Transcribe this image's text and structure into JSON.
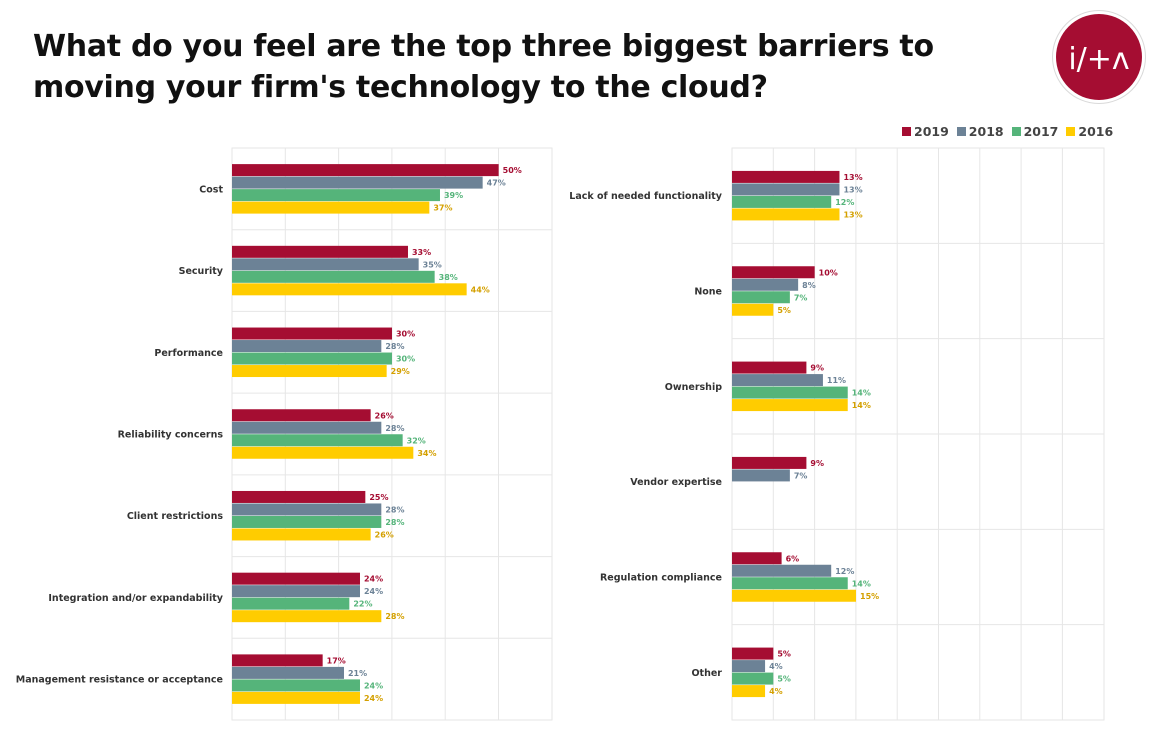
{
  "title": "What do you feel are the top three biggest barriers to moving your firm's technology to the cloud?",
  "logo": {
    "text": "i/+ʌ",
    "icon": "ita-logo",
    "color": "#a50d32"
  },
  "legend": [
    {
      "label": "2019",
      "color": "#a50d32"
    },
    {
      "label": "2018",
      "color": "#6c8296"
    },
    {
      "label": "2017",
      "color": "#55b47a"
    },
    {
      "label": "2016",
      "color": "#ffcc00"
    }
  ],
  "value_label_colors": [
    "#a50d32",
    "#6c8296",
    "#55b47a",
    "#d4a000"
  ],
  "chart_data": [
    {
      "type": "bar",
      "orientation": "horizontal",
      "title": "",
      "categories": [
        "Cost",
        "Security",
        "Performance",
        "Reliability concerns",
        "Client restrictions",
        "Integration and/or expandability",
        "Management resistance or acceptance"
      ],
      "series": [
        {
          "name": "2019",
          "values": [
            50,
            33,
            30,
            26,
            25,
            24,
            17
          ]
        },
        {
          "name": "2018",
          "values": [
            47,
            35,
            28,
            28,
            28,
            24,
            21
          ]
        },
        {
          "name": "2017",
          "values": [
            39,
            38,
            30,
            32,
            28,
            22,
            24
          ]
        },
        {
          "name": "2016",
          "values": [
            37,
            44,
            29,
            34,
            26,
            28,
            24
          ]
        }
      ],
      "value_suffix": "%",
      "xlim": [
        0,
        60
      ],
      "grid": true,
      "legend": "top-right"
    },
    {
      "type": "bar",
      "orientation": "horizontal",
      "title": "",
      "categories": [
        "Lack of needed functionality",
        "None",
        "Ownership",
        "Vendor expertise",
        "Regulation compliance",
        "Other"
      ],
      "series": [
        {
          "name": "2019",
          "values": [
            13,
            10,
            9,
            9,
            6,
            5
          ]
        },
        {
          "name": "2018",
          "values": [
            13,
            8,
            11,
            7,
            12,
            4
          ]
        },
        {
          "name": "2017",
          "values": [
            12,
            7,
            14,
            null,
            14,
            5
          ]
        },
        {
          "name": "2016",
          "values": [
            13,
            5,
            14,
            null,
            15,
            4
          ]
        }
      ],
      "value_suffix": "%",
      "xlim": [
        0,
        45
      ],
      "grid": true,
      "legend": "top-right"
    }
  ]
}
